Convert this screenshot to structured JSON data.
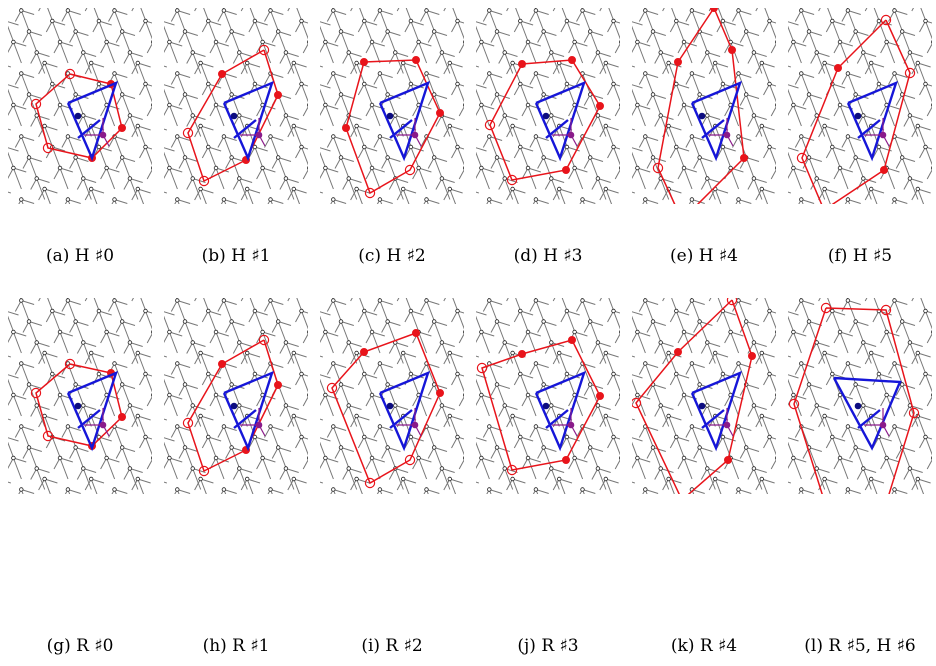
{
  "colors": {
    "lattice": "#777777",
    "lattice_node": "#222222",
    "polygon": "#e8141b",
    "triangle": "#1616d8",
    "arrow": "#8a1a8a",
    "point": "#0c0c80"
  },
  "panels": [
    {
      "caption": "(a) H ♯0"
    },
    {
      "caption": "(b) H ♯1"
    },
    {
      "caption": "(c) H ♯2"
    },
    {
      "caption": "(d) H ♯3"
    },
    {
      "caption": "(e) H ♯4"
    },
    {
      "caption": "(f) H ♯5"
    },
    {
      "caption": "(g) R ♯0"
    },
    {
      "caption": "(h) R ♯1"
    },
    {
      "caption": "(i) R ♯2"
    },
    {
      "caption": "(j) R ♯3"
    },
    {
      "caption": "(k) R ♯4"
    },
    {
      "caption": "(l) R ♯5, H ♯6"
    }
  ]
}
